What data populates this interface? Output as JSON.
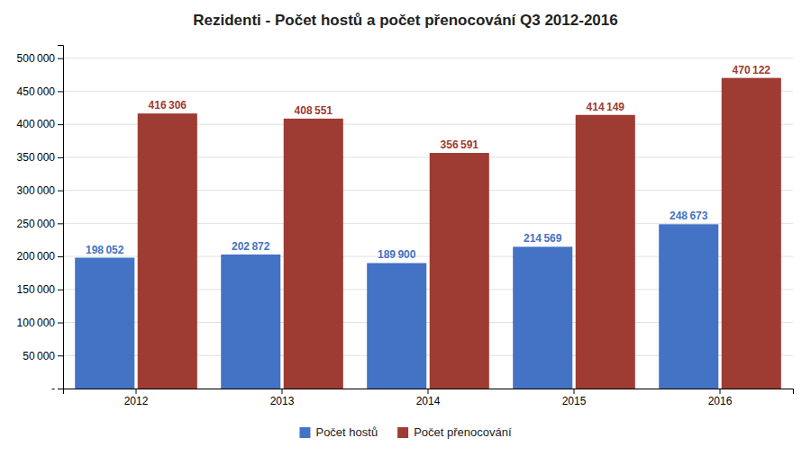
{
  "chart_data": {
    "type": "bar",
    "title": "Rezidenti - Počet hostů a počet přenocování Q3 2012-2016",
    "categories": [
      "2012",
      "2013",
      "2014",
      "2015",
      "2016"
    ],
    "series": [
      {
        "name": "Počet hostů",
        "color": "#4472C4",
        "values": [
          198052,
          202872,
          189900,
          214569,
          248673
        ],
        "value_labels": [
          "198 052",
          "202 872",
          "189 900",
          "214 569",
          "248 673"
        ]
      },
      {
        "name": "Počet přenocování",
        "color": "#9E3B32",
        "values": [
          416306,
          408551,
          356591,
          414149,
          470122
        ],
        "value_labels": [
          "416 306",
          "408 551",
          "356 591",
          "414 149",
          "470 122"
        ]
      }
    ],
    "ylim": [
      0,
      520000
    ],
    "yticks": [
      {
        "value": 0,
        "label": "-"
      },
      {
        "value": 50000,
        "label": "50 000"
      },
      {
        "value": 100000,
        "label": "100 000"
      },
      {
        "value": 150000,
        "label": "150 000"
      },
      {
        "value": 200000,
        "label": "200 000"
      },
      {
        "value": 250000,
        "label": "250 000"
      },
      {
        "value": 300000,
        "label": "300 000"
      },
      {
        "value": 350000,
        "label": "350 000"
      },
      {
        "value": 400000,
        "label": "400 000"
      },
      {
        "value": 450000,
        "label": "450 000"
      },
      {
        "value": 500000,
        "label": "500 000"
      }
    ],
    "grid": true,
    "legend": "bottom",
    "data_labels": true
  }
}
